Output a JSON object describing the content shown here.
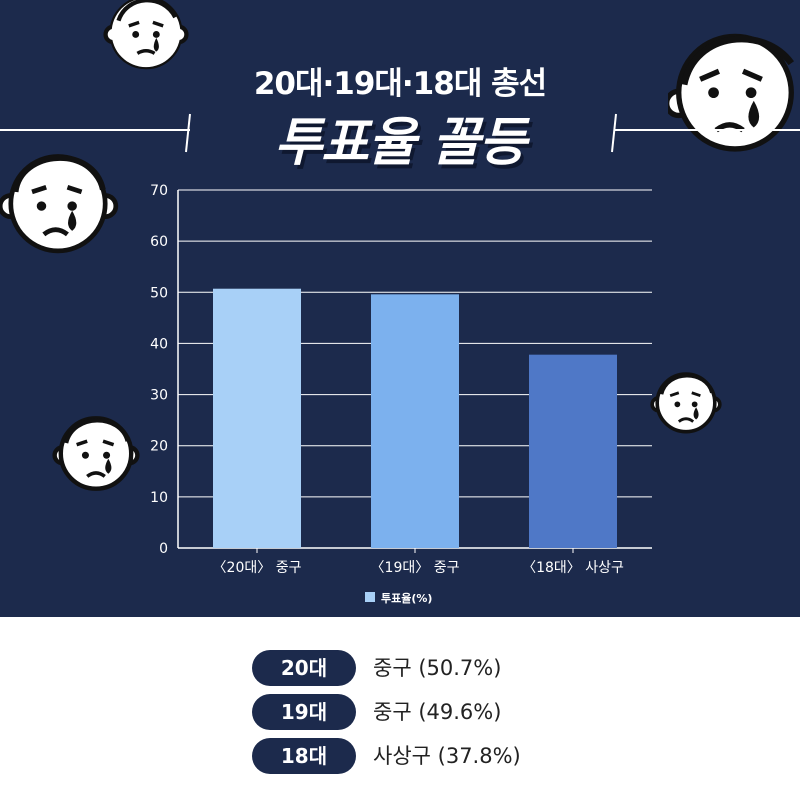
{
  "header": {
    "title_line1": "20대·19대·18대 총선",
    "title_line2": "투표율 꼴등"
  },
  "colors": {
    "background": "#1c2a4c",
    "bar_colors": [
      "#a8d0f7",
      "#7cb1ee",
      "#4f78c7"
    ],
    "legend_swatch": "#a8d0f7",
    "pill": "#1c2a4c"
  },
  "decorations": [
    "crying-face-icon",
    "crying-face-icon",
    "crying-face-icon",
    "crying-face-icon",
    "crying-face-icon"
  ],
  "chart_data": {
    "type": "bar",
    "title": "",
    "categories": [
      "〈20대〉 중구",
      "〈19대〉 중구",
      "〈18대〉 사상구"
    ],
    "series": [
      {
        "name": "투표율(%)",
        "values": [
          50.7,
          49.6,
          37.8
        ]
      }
    ],
    "ylim": [
      0,
      70
    ],
    "yticks": [
      0,
      10,
      20,
      30,
      40,
      50,
      60,
      70
    ],
    "grid": true,
    "legend": "bottom"
  },
  "summary": [
    {
      "badge": "20대",
      "text": "중구 (50.7%)"
    },
    {
      "badge": "19대",
      "text": "중구 (49.6%)"
    },
    {
      "badge": "18대",
      "text": "사상구 (37.8%)"
    }
  ]
}
